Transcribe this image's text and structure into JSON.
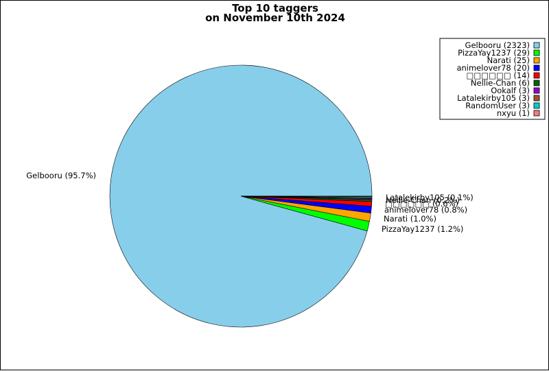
{
  "chart_data": {
    "type": "pie",
    "title": [
      "Top 10 taggers",
      "on November 10th 2024"
    ],
    "slices": [
      {
        "name": "Gelbooru",
        "count": 2323,
        "legend": "Gelbooru (2323)",
        "label": "Gelbooru (95.7%)",
        "color": "#87ceeb"
      },
      {
        "name": "PizzaYay1237",
        "count": 29,
        "legend": "PizzaYay1237 (29)",
        "label": "PizzaYay1237 (1.2%)",
        "color": "#00ff00"
      },
      {
        "name": "Narati",
        "count": 25,
        "legend": "Narati (25)",
        "label": "Narati (1.0%)",
        "color": "#ffa500"
      },
      {
        "name": "animelover78",
        "count": 20,
        "legend": "animelover78 (20)",
        "label": "animelover78 (0.8%)",
        "color": "#0000ff"
      },
      {
        "name": "□□□□□□",
        "count": 14,
        "legend": "□□□□□□ (14)",
        "label": "□□□□□□ (0.6%)",
        "color": "#ff0000"
      },
      {
        "name": "Nellie-Chan",
        "count": 6,
        "legend": "Nellie-Chan (6)",
        "label": "Nellie-Chan (0.2%)",
        "color": "#006400"
      },
      {
        "name": "Ookalf",
        "count": 3,
        "legend": "Ookalf (3)",
        "label": "Ookalf (0.1%)",
        "color": "#9400d3"
      },
      {
        "name": "Latalekirby105",
        "count": 3,
        "legend": "Latalekirby105 (3)",
        "label": "Latalekirby105 (0.1%)",
        "color": "#a0522d"
      },
      {
        "name": "RandomUser",
        "count": 3,
        "legend": "RandomUser (3)",
        "label": "RandomUser (0.1%)",
        "color": "#00ced1"
      },
      {
        "name": "nxyu",
        "count": 1,
        "legend": "nxyu (1)",
        "label": "nxyu (0.0%)",
        "color": "#f08080"
      }
    ],
    "legend_position": "top-right"
  }
}
